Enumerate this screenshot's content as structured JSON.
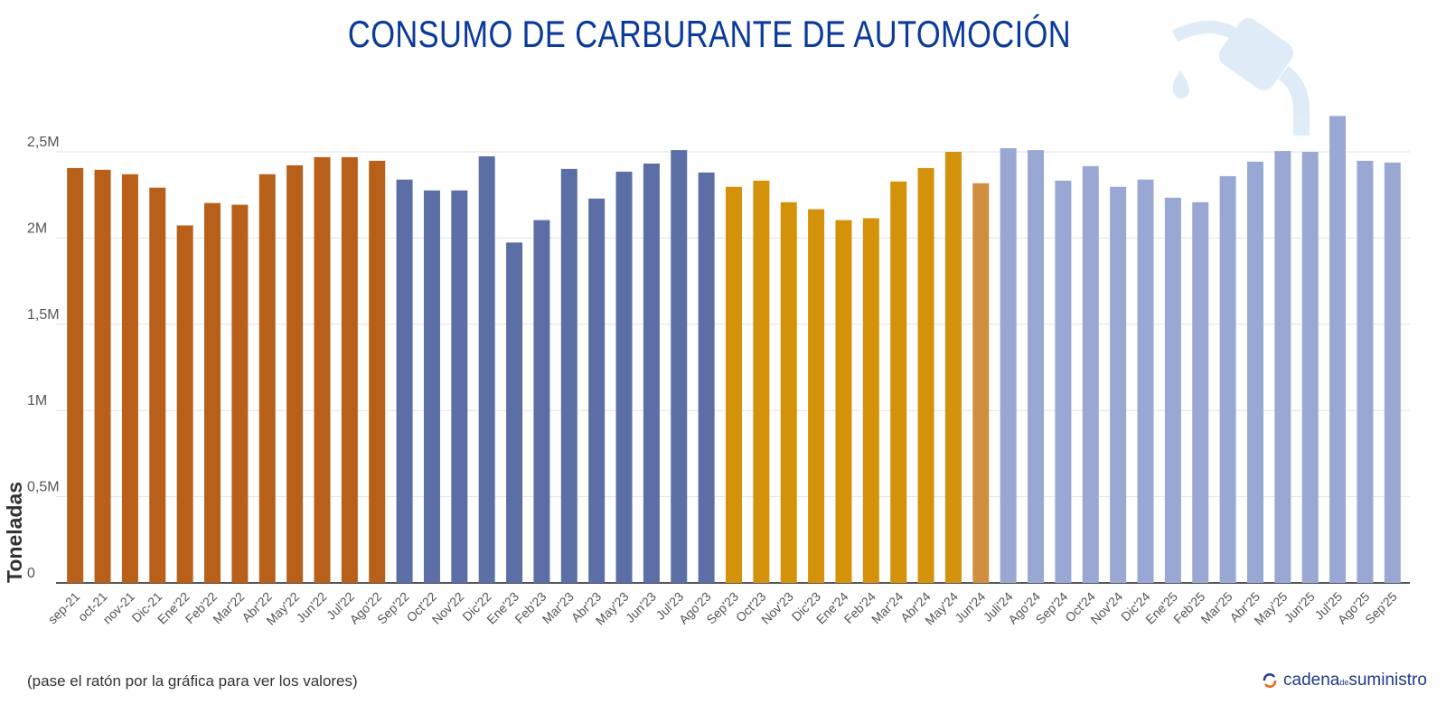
{
  "chart_data": {
    "type": "bar",
    "title": "CONSUMO DE CARBURANTE DE AUTOMOCIÓN",
    "ylabel": "Toneladas",
    "xlabel": "",
    "ylim": [
      0,
      2500000
    ],
    "yticks": [
      "0",
      "0,5M",
      "1M",
      "1,5M",
      "2M",
      "2,5M"
    ],
    "grid": true,
    "categories": [
      "sep-21",
      "oct-21",
      "nov-21",
      "Dic-21",
      "Ene'22",
      "Feb'22",
      "Mar'22",
      "Abr'22",
      "May'22",
      "Jun'22",
      "Jul'22",
      "Ago'22",
      "Sep'22",
      "Oct'22",
      "Nov'22",
      "Dic'22",
      "Ene'23",
      "Feb'23",
      "Mar'23",
      "Abr'23",
      "May'23",
      "Jun'23",
      "Jul'23",
      "Ago'23",
      "Sep'23",
      "Oct'23",
      "Nov'23",
      "Dic'23",
      "Ene'24",
      "Feb'24",
      "Mar'24",
      "Abr'24",
      "May'24",
      "Jun'24",
      "Juli'24",
      "Ago'24",
      "Sep'24",
      "Oct'24",
      "Nov'24",
      "Dic'24",
      "Ene'25",
      "Feb'25",
      "Mar'25",
      "Abr'25",
      "May'25",
      "Jun'25",
      "Jul'25",
      "Ago'25",
      "Sep'25"
    ],
    "values": [
      2406000,
      2396000,
      2370000,
      2292000,
      2073000,
      2203000,
      2193000,
      2370000,
      2422000,
      2469000,
      2469000,
      2448000,
      2339000,
      2276000,
      2276000,
      2474000,
      1974000,
      2104000,
      2401000,
      2229000,
      2385000,
      2432000,
      2510000,
      2380000,
      2297000,
      2333000,
      2208000,
      2167000,
      2104000,
      2115000,
      2328000,
      2406000,
      2500000,
      2318000,
      2521000,
      2510000,
      2333000,
      2417000,
      2297000,
      2339000,
      2234000,
      2208000,
      2359000,
      2443000,
      2505000,
      2500000,
      2708000,
      2448000,
      2438000
    ],
    "bar_colors": [
      "#b85f1a",
      "#b85f1a",
      "#b85f1a",
      "#b85f1a",
      "#b85f1a",
      "#b85f1a",
      "#b85f1a",
      "#b85f1a",
      "#b85f1a",
      "#b85f1a",
      "#b85f1a",
      "#b85f1a",
      "#5b6fa6",
      "#5b6fa6",
      "#5b6fa6",
      "#5b6fa6",
      "#5b6fa6",
      "#5b6fa6",
      "#5b6fa6",
      "#5b6fa6",
      "#5b6fa6",
      "#5b6fa6",
      "#5b6fa6",
      "#5b6fa6",
      "#d4920a",
      "#d4920a",
      "#d4920a",
      "#d4920a",
      "#d4920a",
      "#d4920a",
      "#d4920a",
      "#d4920a",
      "#d4920a",
      "#cf8f3e",
      "#99a8d3",
      "#99a8d3",
      "#99a8d3",
      "#99a8d3",
      "#99a8d3",
      "#99a8d3",
      "#99a8d3",
      "#99a8d3",
      "#99a8d3",
      "#99a8d3",
      "#99a8d3",
      "#99a8d3",
      "#99a8d3",
      "#99a8d3",
      "#99a8d3"
    ]
  },
  "footer": {
    "note": "(pase el ratón por la gráfica para ver los valores)",
    "logo_text_1": "cadena",
    "logo_text_2": "de",
    "logo_text_3": "suministro"
  },
  "icons": {
    "watermark": "fuel-nozzle-icon",
    "logo": "cycle-arrows-icon"
  }
}
